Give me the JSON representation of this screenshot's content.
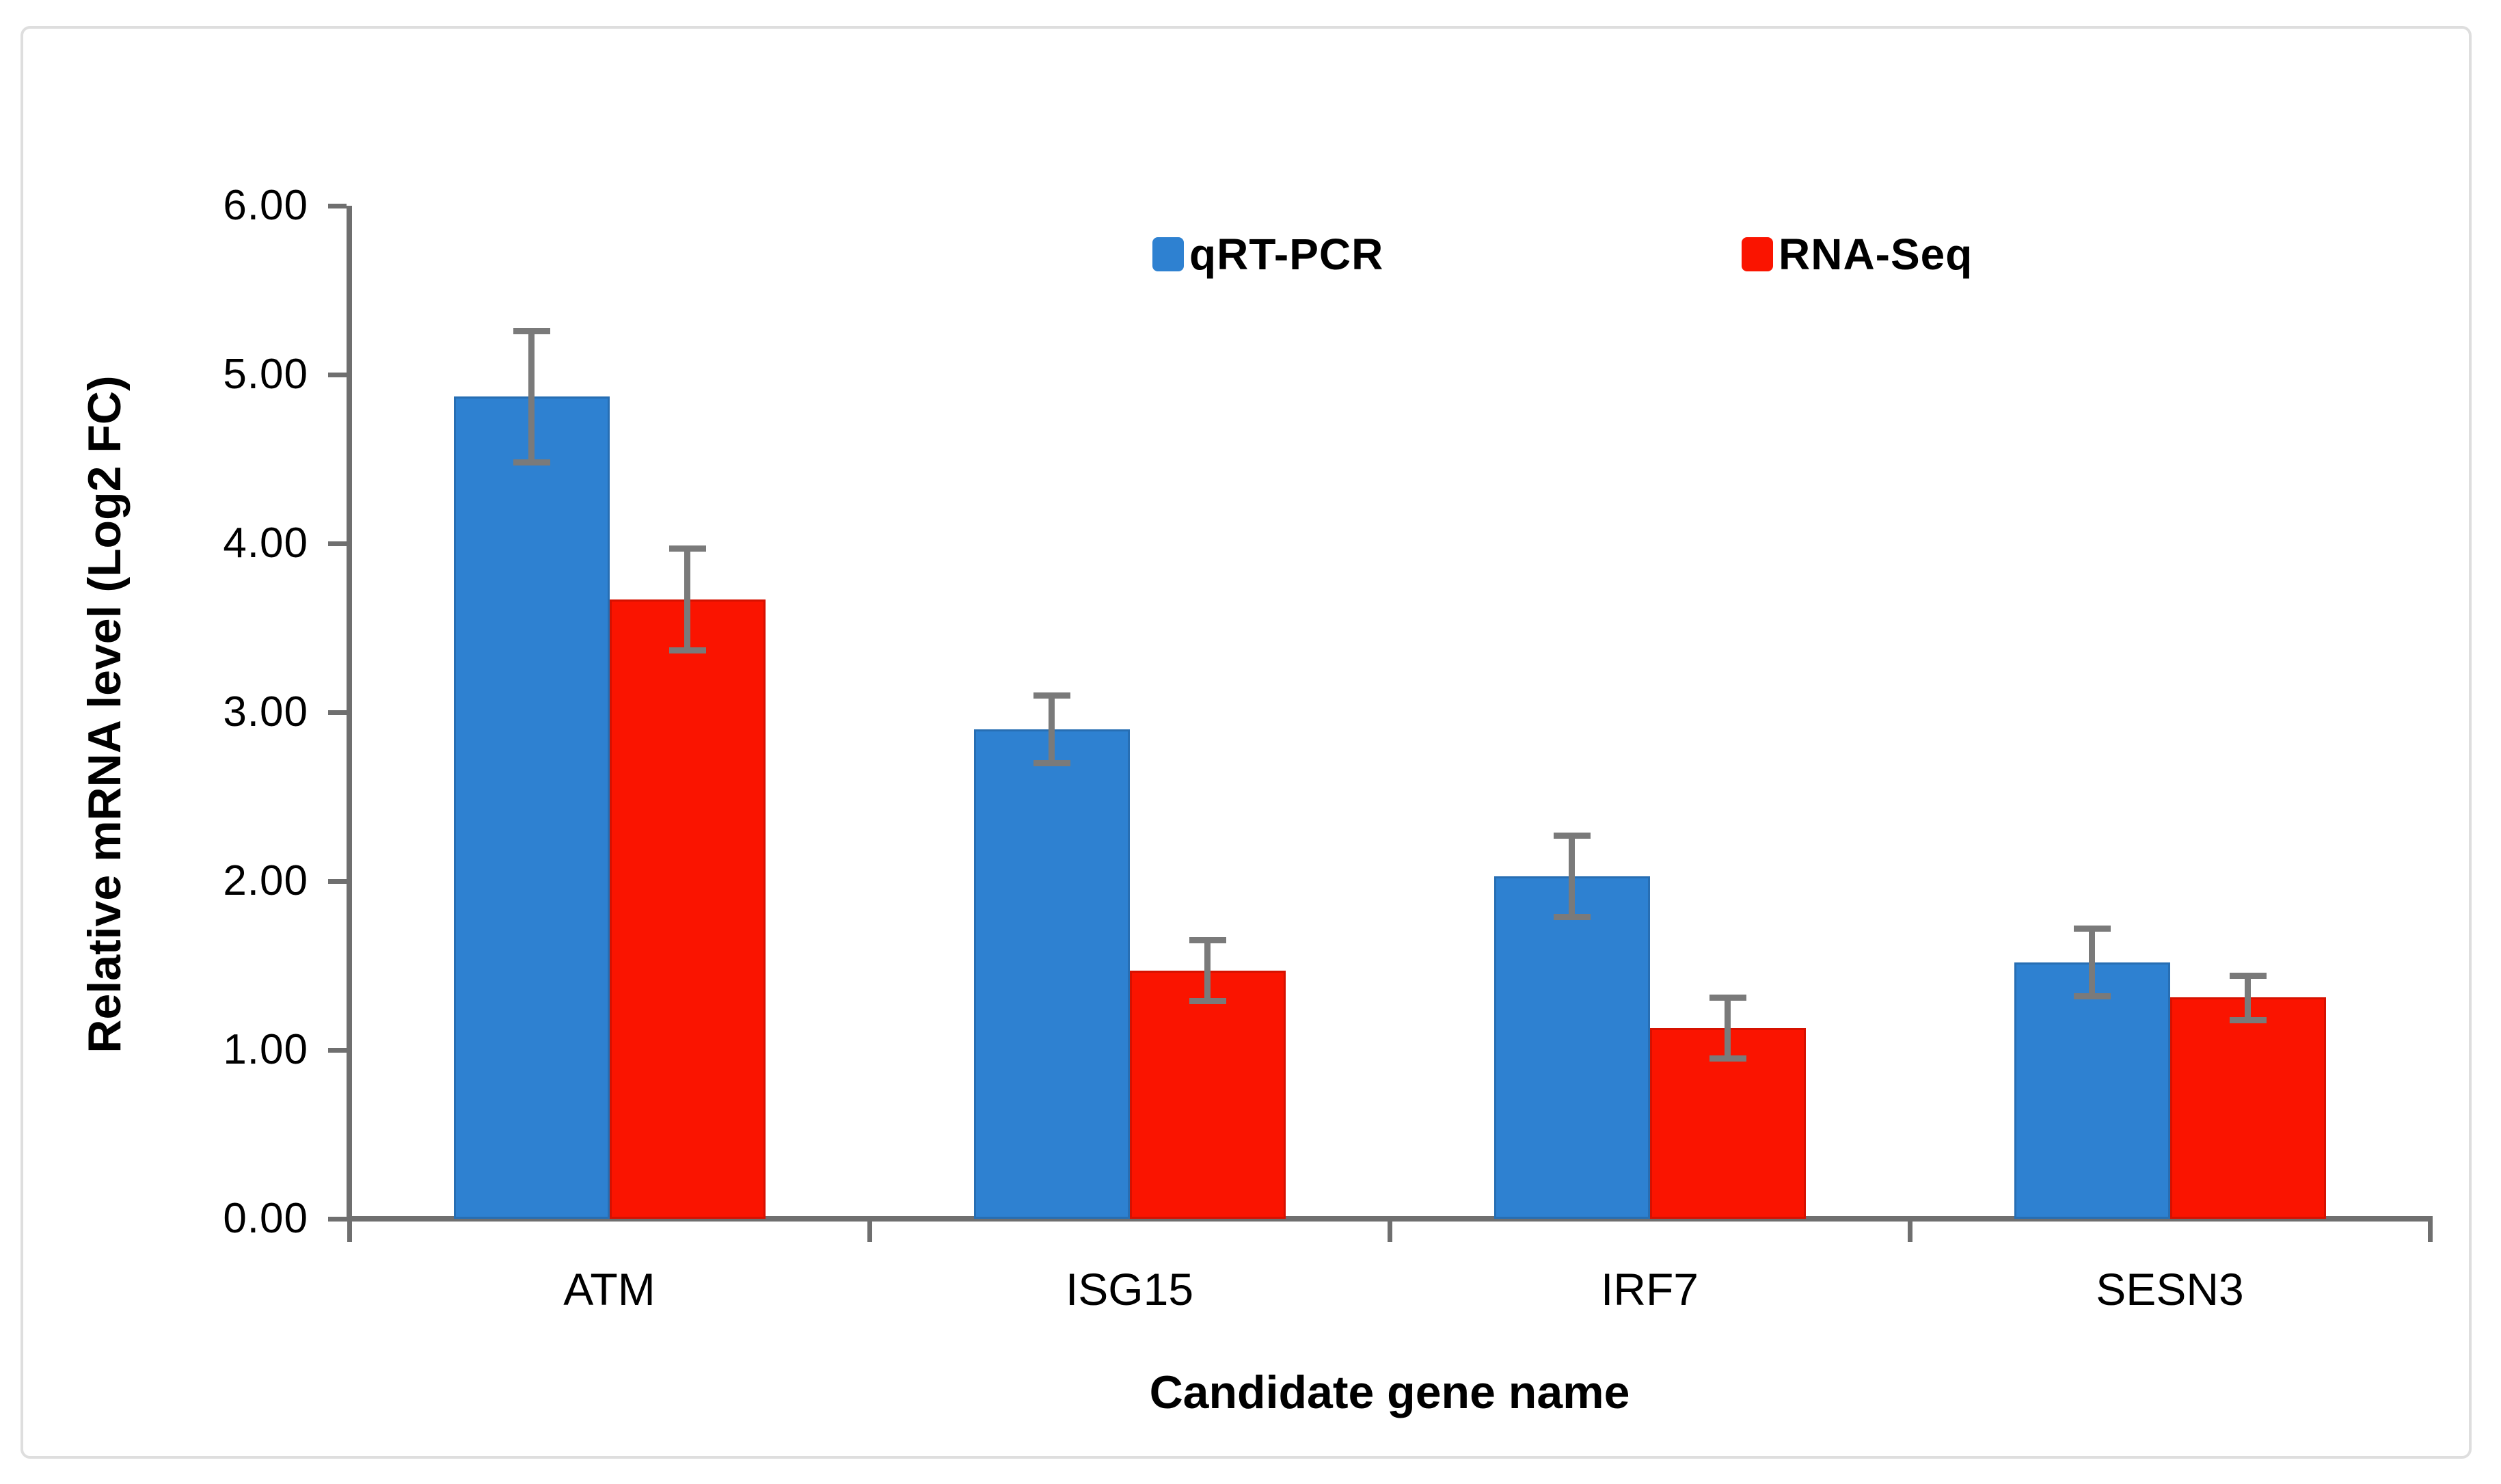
{
  "figure": {
    "background_color": "#FFFFFF",
    "frame_border_color": "#DEDEDE"
  },
  "axes": {
    "y_title": "Relative mRNA level (Log2 FC)",
    "x_title": "Candidate gene name",
    "y_tick_labels": [
      "0.00",
      "1.00",
      "2.00",
      "3.00",
      "4.00",
      "5.00",
      "6.00"
    ],
    "axis_color": "#6F6F6F",
    "error_bar_color": "#7A7A7A"
  },
  "legend": {
    "items": [
      {
        "label": "qRT-PCR",
        "color": "#2E81D1"
      },
      {
        "label": "RNA-Seq",
        "color": "#FA1400"
      }
    ]
  },
  "chart_data": {
    "type": "bar",
    "title": "",
    "xlabel": "Candidate gene name",
    "ylabel": "Relative mRNA level (Log2 FC)",
    "categories": [
      "ATM",
      "ISG15",
      "IRF7",
      "SESN3"
    ],
    "series": [
      {
        "name": "qRT-PCR",
        "color": "#2E81D1",
        "values": [
          4.87,
          2.9,
          2.03,
          1.52
        ],
        "errors": [
          0.39,
          0.2,
          0.24,
          0.2
        ]
      },
      {
        "name": "RNA-Seq",
        "color": "#FA1400",
        "values": [
          3.67,
          1.47,
          1.13,
          1.31
        ],
        "errors": [
          0.3,
          0.18,
          0.18,
          0.13
        ]
      }
    ],
    "ylim": [
      0,
      6
    ],
    "ytick_step": 1.0,
    "ytick_format": "2dp",
    "grid": false,
    "error_bars": true,
    "legend_position": "top-center"
  }
}
